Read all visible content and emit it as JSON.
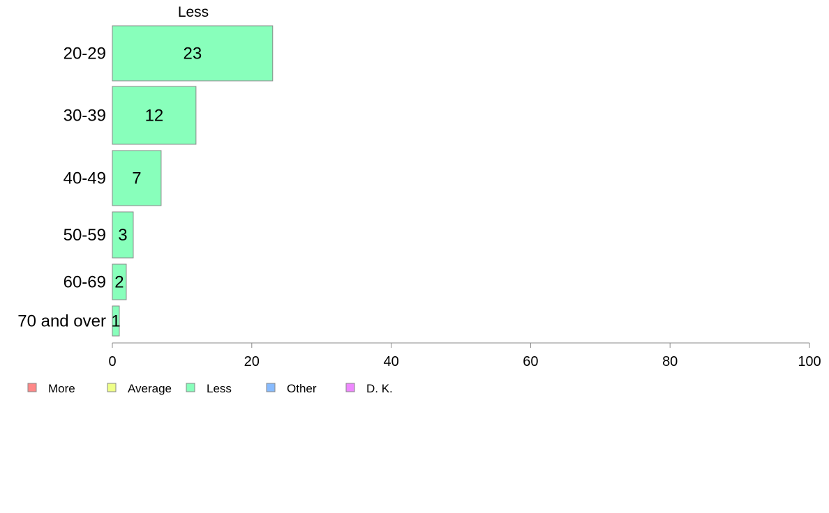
{
  "chart_data": {
    "type": "bar",
    "orientation": "horizontal",
    "column_title": "Less",
    "categories": [
      "20-29",
      "30-39",
      "40-49",
      "50-59",
      "60-69",
      "70 and over"
    ],
    "series": [
      {
        "name": "Less",
        "color": "#88ffbb",
        "values": [
          23,
          12,
          7,
          3,
          2,
          1
        ]
      }
    ],
    "value_labels": [
      "23",
      "12",
      "7",
      "3",
      "2",
      "1"
    ],
    "xlim": [
      0,
      100
    ],
    "xticks": [
      0,
      20,
      40,
      60,
      80,
      100
    ],
    "grid": false,
    "legend_position": "bottom-left",
    "legend": [
      {
        "label": "More",
        "color": "#ff8888"
      },
      {
        "label": "Average",
        "color": "#eeff88"
      },
      {
        "label": "Less",
        "color": "#88ffbb"
      },
      {
        "label": "Other",
        "color": "#88bbff"
      },
      {
        "label": "D. K.",
        "color": "#ee88ff"
      }
    ]
  }
}
